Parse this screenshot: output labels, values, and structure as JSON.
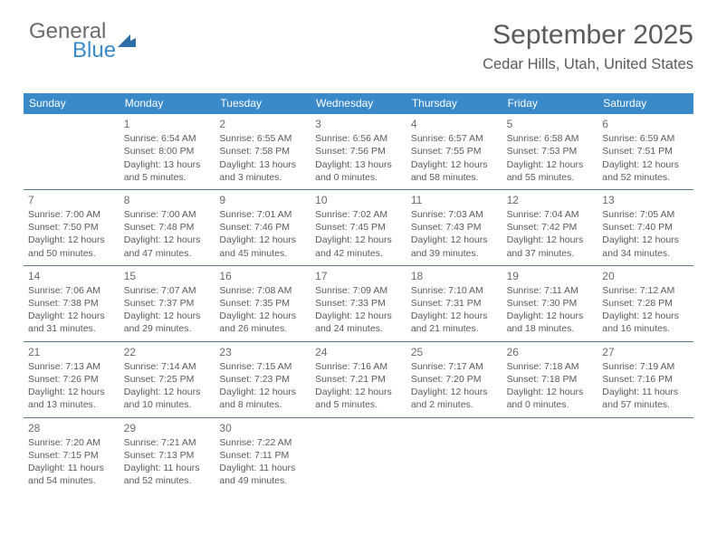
{
  "logo": {
    "word1": "General",
    "word2": "Blue",
    "triangle_color": "#2f6fa8"
  },
  "title": "September 2025",
  "location": "Cedar Hills, Utah, United States",
  "colors": {
    "header_bg": "#3a8ac9",
    "header_text": "#ffffff",
    "divider": "#5b7a94",
    "text": "#5a5a5a",
    "background": "#ffffff"
  },
  "day_headers": [
    "Sunday",
    "Monday",
    "Tuesday",
    "Wednesday",
    "Thursday",
    "Friday",
    "Saturday"
  ],
  "grid": {
    "columns": 7,
    "rows": 5
  },
  "weeks": [
    [
      null,
      {
        "n": "1",
        "sr": "Sunrise: 6:54 AM",
        "ss": "Sunset: 8:00 PM",
        "dl": "Daylight: 13 hours and 5 minutes."
      },
      {
        "n": "2",
        "sr": "Sunrise: 6:55 AM",
        "ss": "Sunset: 7:58 PM",
        "dl": "Daylight: 13 hours and 3 minutes."
      },
      {
        "n": "3",
        "sr": "Sunrise: 6:56 AM",
        "ss": "Sunset: 7:56 PM",
        "dl": "Daylight: 13 hours and 0 minutes."
      },
      {
        "n": "4",
        "sr": "Sunrise: 6:57 AM",
        "ss": "Sunset: 7:55 PM",
        "dl": "Daylight: 12 hours and 58 minutes."
      },
      {
        "n": "5",
        "sr": "Sunrise: 6:58 AM",
        "ss": "Sunset: 7:53 PM",
        "dl": "Daylight: 12 hours and 55 minutes."
      },
      {
        "n": "6",
        "sr": "Sunrise: 6:59 AM",
        "ss": "Sunset: 7:51 PM",
        "dl": "Daylight: 12 hours and 52 minutes."
      }
    ],
    [
      {
        "n": "7",
        "sr": "Sunrise: 7:00 AM",
        "ss": "Sunset: 7:50 PM",
        "dl": "Daylight: 12 hours and 50 minutes."
      },
      {
        "n": "8",
        "sr": "Sunrise: 7:00 AM",
        "ss": "Sunset: 7:48 PM",
        "dl": "Daylight: 12 hours and 47 minutes."
      },
      {
        "n": "9",
        "sr": "Sunrise: 7:01 AM",
        "ss": "Sunset: 7:46 PM",
        "dl": "Daylight: 12 hours and 45 minutes."
      },
      {
        "n": "10",
        "sr": "Sunrise: 7:02 AM",
        "ss": "Sunset: 7:45 PM",
        "dl": "Daylight: 12 hours and 42 minutes."
      },
      {
        "n": "11",
        "sr": "Sunrise: 7:03 AM",
        "ss": "Sunset: 7:43 PM",
        "dl": "Daylight: 12 hours and 39 minutes."
      },
      {
        "n": "12",
        "sr": "Sunrise: 7:04 AM",
        "ss": "Sunset: 7:42 PM",
        "dl": "Daylight: 12 hours and 37 minutes."
      },
      {
        "n": "13",
        "sr": "Sunrise: 7:05 AM",
        "ss": "Sunset: 7:40 PM",
        "dl": "Daylight: 12 hours and 34 minutes."
      }
    ],
    [
      {
        "n": "14",
        "sr": "Sunrise: 7:06 AM",
        "ss": "Sunset: 7:38 PM",
        "dl": "Daylight: 12 hours and 31 minutes."
      },
      {
        "n": "15",
        "sr": "Sunrise: 7:07 AM",
        "ss": "Sunset: 7:37 PM",
        "dl": "Daylight: 12 hours and 29 minutes."
      },
      {
        "n": "16",
        "sr": "Sunrise: 7:08 AM",
        "ss": "Sunset: 7:35 PM",
        "dl": "Daylight: 12 hours and 26 minutes."
      },
      {
        "n": "17",
        "sr": "Sunrise: 7:09 AM",
        "ss": "Sunset: 7:33 PM",
        "dl": "Daylight: 12 hours and 24 minutes."
      },
      {
        "n": "18",
        "sr": "Sunrise: 7:10 AM",
        "ss": "Sunset: 7:31 PM",
        "dl": "Daylight: 12 hours and 21 minutes."
      },
      {
        "n": "19",
        "sr": "Sunrise: 7:11 AM",
        "ss": "Sunset: 7:30 PM",
        "dl": "Daylight: 12 hours and 18 minutes."
      },
      {
        "n": "20",
        "sr": "Sunrise: 7:12 AM",
        "ss": "Sunset: 7:28 PM",
        "dl": "Daylight: 12 hours and 16 minutes."
      }
    ],
    [
      {
        "n": "21",
        "sr": "Sunrise: 7:13 AM",
        "ss": "Sunset: 7:26 PM",
        "dl": "Daylight: 12 hours and 13 minutes."
      },
      {
        "n": "22",
        "sr": "Sunrise: 7:14 AM",
        "ss": "Sunset: 7:25 PM",
        "dl": "Daylight: 12 hours and 10 minutes."
      },
      {
        "n": "23",
        "sr": "Sunrise: 7:15 AM",
        "ss": "Sunset: 7:23 PM",
        "dl": "Daylight: 12 hours and 8 minutes."
      },
      {
        "n": "24",
        "sr": "Sunrise: 7:16 AM",
        "ss": "Sunset: 7:21 PM",
        "dl": "Daylight: 12 hours and 5 minutes."
      },
      {
        "n": "25",
        "sr": "Sunrise: 7:17 AM",
        "ss": "Sunset: 7:20 PM",
        "dl": "Daylight: 12 hours and 2 minutes."
      },
      {
        "n": "26",
        "sr": "Sunrise: 7:18 AM",
        "ss": "Sunset: 7:18 PM",
        "dl": "Daylight: 12 hours and 0 minutes."
      },
      {
        "n": "27",
        "sr": "Sunrise: 7:19 AM",
        "ss": "Sunset: 7:16 PM",
        "dl": "Daylight: 11 hours and 57 minutes."
      }
    ],
    [
      {
        "n": "28",
        "sr": "Sunrise: 7:20 AM",
        "ss": "Sunset: 7:15 PM",
        "dl": "Daylight: 11 hours and 54 minutes."
      },
      {
        "n": "29",
        "sr": "Sunrise: 7:21 AM",
        "ss": "Sunset: 7:13 PM",
        "dl": "Daylight: 11 hours and 52 minutes."
      },
      {
        "n": "30",
        "sr": "Sunrise: 7:22 AM",
        "ss": "Sunset: 7:11 PM",
        "dl": "Daylight: 11 hours and 49 minutes."
      },
      null,
      null,
      null,
      null
    ]
  ]
}
